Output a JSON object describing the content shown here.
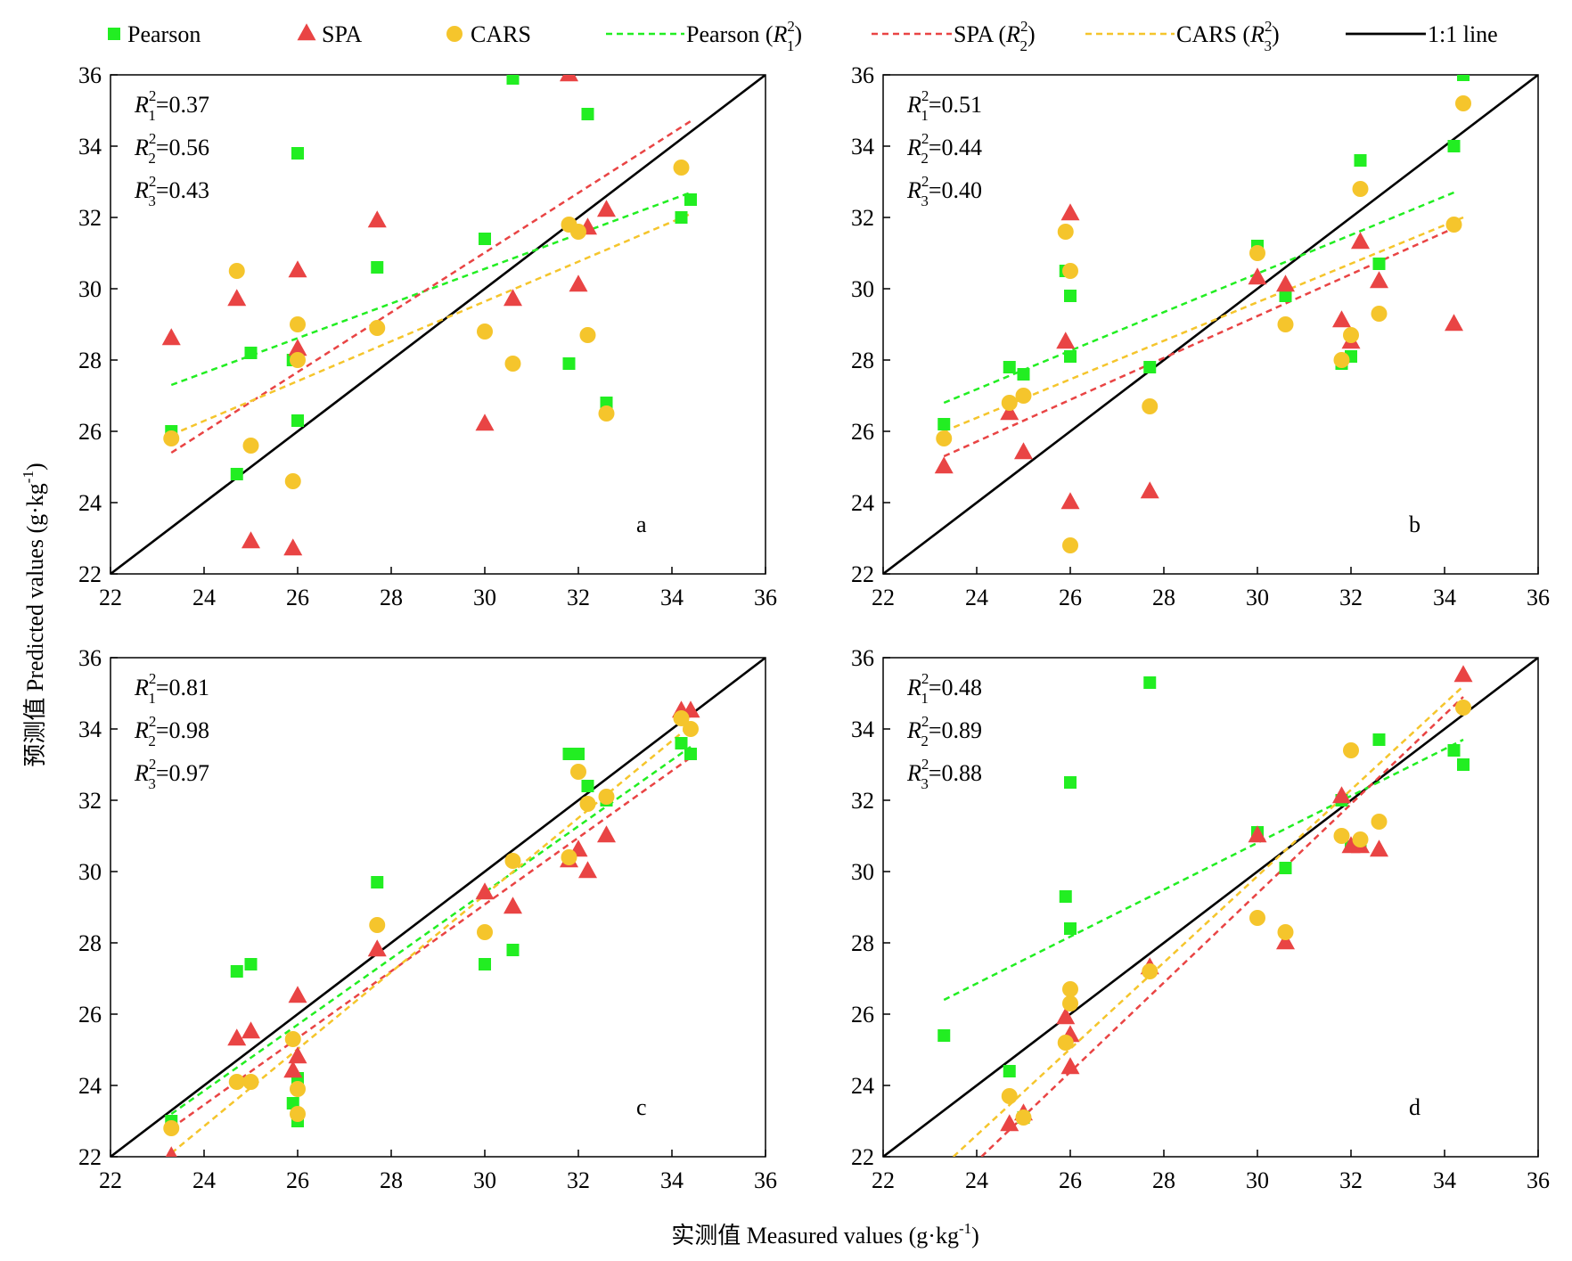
{
  "legend": {
    "items": [
      {
        "type": "marker",
        "marker": "square",
        "color": "#22ee22",
        "label": "Pearson"
      },
      {
        "type": "marker",
        "marker": "triangle",
        "color": "#e94444",
        "label": "SPA"
      },
      {
        "type": "marker",
        "marker": "circle",
        "color": "#f5c52c",
        "label": "CARS"
      },
      {
        "type": "line",
        "dash": true,
        "color": "#22ee22",
        "label": "Pearson (R",
        "sup": "2",
        "sub": "1",
        "suffix": ")"
      },
      {
        "type": "line",
        "dash": true,
        "color": "#e94444",
        "label": "SPA (R",
        "sup": "2",
        "sub": "2",
        "suffix": ")"
      },
      {
        "type": "line",
        "dash": true,
        "color": "#f5c52c",
        "label": "CARS (R",
        "sup": "2",
        "sub": "3",
        "suffix": ")"
      },
      {
        "type": "line",
        "dash": false,
        "color": "#000000",
        "label": "1:1 line"
      }
    ]
  },
  "axes": {
    "ylabel": "预测值 Predicted values (g·kg",
    "ylabel_sup": "-1",
    "ylabel_suffix": ")",
    "xlabel": "实测值 Measured values (g·kg",
    "xlabel_sup": "-1",
    "xlabel_suffix": ")"
  },
  "colors": {
    "pearson": "#22ee22",
    "spa": "#e94444",
    "cars": "#f5c52c",
    "identity": "#000000"
  },
  "chart_data": [
    {
      "type": "scatter",
      "panel_label": "a",
      "xlim": [
        22,
        36
      ],
      "ylim": [
        22,
        36
      ],
      "xticks": [
        22,
        24,
        26,
        28,
        30,
        32,
        34,
        36
      ],
      "yticks": [
        22,
        24,
        26,
        28,
        30,
        32,
        34,
        36
      ],
      "r2": [
        {
          "prefix": "R",
          "sup": "2",
          "sub": "1",
          "value": "=0.37"
        },
        {
          "prefix": "R",
          "sup": "2",
          "sub": "2",
          "value": "=0.56"
        },
        {
          "prefix": "R",
          "sup": "2",
          "sub": "3",
          "value": "=0.43"
        }
      ],
      "series": [
        {
          "name": "Pearson",
          "marker": "square",
          "color": "#22ee22",
          "x": [
            23.3,
            24.7,
            25.0,
            25.9,
            26.0,
            26.0,
            27.7,
            30.0,
            30.6,
            31.8,
            32.2,
            32.6,
            34.2,
            34.4
          ],
          "y": [
            26.0,
            24.8,
            28.2,
            28.0,
            33.8,
            26.3,
            30.6,
            31.4,
            35.9,
            27.9,
            34.9,
            26.8,
            32.0,
            32.5
          ]
        },
        {
          "name": "SPA",
          "marker": "triangle",
          "color": "#e94444",
          "x": [
            23.3,
            24.7,
            25.0,
            25.9,
            26.0,
            26.0,
            27.7,
            30.0,
            30.6,
            31.8,
            32.0,
            32.2,
            32.6
          ],
          "y": [
            28.6,
            29.7,
            22.9,
            22.7,
            30.5,
            28.3,
            31.9,
            26.2,
            29.7,
            36.0,
            30.1,
            31.7,
            32.2
          ]
        },
        {
          "name": "CARS",
          "marker": "circle",
          "color": "#f5c52c",
          "x": [
            23.3,
            24.7,
            25.0,
            25.9,
            26.0,
            26.0,
            27.7,
            30.0,
            30.6,
            31.8,
            32.0,
            32.2,
            32.6,
            34.2
          ],
          "y": [
            25.8,
            30.5,
            25.6,
            24.6,
            29.0,
            28.0,
            28.9,
            28.8,
            27.9,
            31.8,
            31.6,
            28.7,
            26.5,
            33.4
          ]
        }
      ],
      "fits": [
        {
          "name": "Pearson",
          "color": "#22ee22",
          "x": [
            23.3,
            34.4
          ],
          "y": [
            27.3,
            32.7
          ]
        },
        {
          "name": "SPA",
          "color": "#e94444",
          "x": [
            23.3,
            34.4
          ],
          "y": [
            25.4,
            34.7
          ]
        },
        {
          "name": "CARS",
          "color": "#f5c52c",
          "x": [
            23.3,
            34.4
          ],
          "y": [
            25.9,
            32.1
          ]
        }
      ],
      "identity": {
        "x": [
          22,
          36
        ],
        "y": [
          22,
          36
        ]
      }
    },
    {
      "type": "scatter",
      "panel_label": "b",
      "xlim": [
        22,
        36
      ],
      "ylim": [
        22,
        36
      ],
      "xticks": [
        22,
        24,
        26,
        28,
        30,
        32,
        34,
        36
      ],
      "yticks": [
        22,
        24,
        26,
        28,
        30,
        32,
        34,
        36
      ],
      "r2": [
        {
          "prefix": "R",
          "sup": "2",
          "sub": "1",
          "value": "=0.51"
        },
        {
          "prefix": "R",
          "sup": "2",
          "sub": "2",
          "value": "=0.44"
        },
        {
          "prefix": "R",
          "sup": "2",
          "sub": "3",
          "value": "=0.40"
        }
      ],
      "series": [
        {
          "name": "Pearson",
          "marker": "square",
          "color": "#22ee22",
          "x": [
            23.3,
            24.7,
            25.0,
            25.9,
            26.0,
            26.0,
            27.7,
            30.0,
            30.6,
            31.8,
            32.0,
            32.2,
            32.6,
            34.2,
            34.4
          ],
          "y": [
            26.2,
            27.8,
            27.6,
            30.5,
            29.8,
            28.1,
            27.8,
            31.2,
            29.8,
            27.9,
            28.1,
            33.6,
            30.7,
            34.0,
            36.0
          ]
        },
        {
          "name": "SPA",
          "marker": "triangle",
          "color": "#e94444",
          "x": [
            23.3,
            24.7,
            25.0,
            25.9,
            26.0,
            26.0,
            27.7,
            30.0,
            30.6,
            31.8,
            32.0,
            32.2,
            32.6,
            34.2
          ],
          "y": [
            25.0,
            26.5,
            25.4,
            28.5,
            32.1,
            24.0,
            24.3,
            30.3,
            30.1,
            29.1,
            28.5,
            31.3,
            30.2,
            29.0
          ]
        },
        {
          "name": "CARS",
          "marker": "circle",
          "color": "#f5c52c",
          "x": [
            23.3,
            24.7,
            25.0,
            25.9,
            26.0,
            26.0,
            27.7,
            30.0,
            30.6,
            31.8,
            32.0,
            32.2,
            32.6,
            34.2,
            34.4
          ],
          "y": [
            25.8,
            26.8,
            27.0,
            31.6,
            30.5,
            22.8,
            26.7,
            31.0,
            29.0,
            28.0,
            28.7,
            32.8,
            29.3,
            31.8,
            35.2
          ]
        }
      ],
      "fits": [
        {
          "name": "Pearson",
          "color": "#22ee22",
          "x": [
            23.3,
            34.2
          ],
          "y": [
            26.8,
            32.7
          ]
        },
        {
          "name": "SPA",
          "color": "#e94444",
          "x": [
            23.3,
            34.2
          ],
          "y": [
            25.3,
            31.7
          ]
        },
        {
          "name": "CARS",
          "color": "#f5c52c",
          "x": [
            23.3,
            34.4
          ],
          "y": [
            26.0,
            32.0
          ]
        }
      ],
      "identity": {
        "x": [
          22,
          36
        ],
        "y": [
          22,
          36
        ]
      }
    },
    {
      "type": "scatter",
      "panel_label": "c",
      "xlim": [
        22,
        36
      ],
      "ylim": [
        22,
        36
      ],
      "xticks": [
        22,
        24,
        26,
        28,
        30,
        32,
        34,
        36
      ],
      "yticks": [
        22,
        24,
        26,
        28,
        30,
        32,
        34,
        36
      ],
      "r2": [
        {
          "prefix": "R",
          "sup": "2",
          "sub": "1",
          "value": "=0.81"
        },
        {
          "prefix": "R",
          "sup": "2",
          "sub": "2",
          "value": "=0.98"
        },
        {
          "prefix": "R",
          "sup": "2",
          "sub": "3",
          "value": "=0.97"
        }
      ],
      "series": [
        {
          "name": "Pearson",
          "marker": "square",
          "color": "#22ee22",
          "x": [
            23.3,
            24.7,
            25.0,
            25.9,
            26.0,
            26.0,
            27.7,
            30.0,
            30.6,
            31.8,
            32.0,
            32.2,
            32.6,
            34.2,
            34.4
          ],
          "y": [
            23.0,
            27.2,
            27.4,
            23.5,
            24.2,
            23.0,
            29.7,
            27.4,
            27.8,
            33.3,
            33.3,
            32.4,
            32.0,
            33.6,
            33.3
          ]
        },
        {
          "name": "SPA",
          "marker": "triangle",
          "color": "#e94444",
          "x": [
            23.3,
            24.7,
            25.0,
            25.9,
            26.0,
            26.0,
            27.7,
            30.0,
            30.6,
            31.8,
            32.0,
            32.2,
            32.6,
            34.2,
            34.4
          ],
          "y": [
            22.0,
            25.3,
            25.5,
            24.4,
            26.5,
            24.8,
            27.8,
            29.4,
            29.0,
            30.3,
            30.6,
            30.0,
            31.0,
            34.5,
            34.5
          ]
        },
        {
          "name": "CARS",
          "marker": "circle",
          "color": "#f5c52c",
          "x": [
            23.3,
            24.7,
            25.0,
            25.9,
            26.0,
            26.0,
            27.7,
            30.0,
            30.6,
            31.8,
            32.0,
            32.2,
            32.6,
            34.2,
            34.4
          ],
          "y": [
            22.8,
            24.1,
            24.1,
            25.3,
            23.9,
            23.2,
            28.5,
            28.3,
            30.3,
            30.4,
            32.8,
            31.9,
            32.1,
            34.3,
            34.0
          ]
        }
      ],
      "fits": [
        {
          "name": "Pearson",
          "color": "#22ee22",
          "x": [
            23.3,
            34.4
          ],
          "y": [
            23.2,
            33.5
          ]
        },
        {
          "name": "SPA",
          "color": "#e94444",
          "x": [
            23.3,
            34.4
          ],
          "y": [
            22.8,
            33.2
          ]
        },
        {
          "name": "CARS",
          "color": "#f5c52c",
          "x": [
            23.3,
            34.4
          ],
          "y": [
            22.1,
            34.1
          ]
        }
      ],
      "identity": {
        "x": [
          22,
          36
        ],
        "y": [
          22,
          36
        ]
      }
    },
    {
      "type": "scatter",
      "panel_label": "d",
      "xlim": [
        22,
        36
      ],
      "ylim": [
        22,
        36
      ],
      "xticks": [
        22,
        24,
        26,
        28,
        30,
        32,
        34,
        36
      ],
      "yticks": [
        22,
        24,
        26,
        28,
        30,
        32,
        34,
        36
      ],
      "r2": [
        {
          "prefix": "R",
          "sup": "2",
          "sub": "1",
          "value": "=0.48"
        },
        {
          "prefix": "R",
          "sup": "2",
          "sub": "2",
          "value": "=0.89"
        },
        {
          "prefix": "R",
          "sup": "2",
          "sub": "3",
          "value": "=0.88"
        }
      ],
      "series": [
        {
          "name": "Pearson",
          "marker": "square",
          "color": "#22ee22",
          "x": [
            23.3,
            24.7,
            25.0,
            25.9,
            26.0,
            26.0,
            27.7,
            30.0,
            30.6,
            31.8,
            32.0,
            32.2,
            32.6,
            34.2,
            34.4
          ],
          "y": [
            25.4,
            24.4,
            23.1,
            29.3,
            32.5,
            28.4,
            35.3,
            31.1,
            30.1,
            32.0,
            30.7,
            30.7,
            33.7,
            33.4,
            33.0
          ]
        },
        {
          "name": "SPA",
          "marker": "triangle",
          "color": "#e94444",
          "x": [
            24.7,
            25.0,
            25.9,
            26.0,
            26.0,
            27.7,
            30.0,
            30.6,
            31.8,
            32.0,
            32.2,
            32.6,
            34.4
          ],
          "y": [
            22.9,
            23.2,
            25.9,
            25.4,
            24.5,
            27.3,
            31.0,
            28.0,
            32.1,
            30.7,
            30.7,
            30.6,
            35.5
          ]
        },
        {
          "name": "CARS",
          "marker": "circle",
          "color": "#f5c52c",
          "x": [
            24.7,
            25.0,
            25.9,
            26.0,
            26.0,
            27.7,
            30.0,
            30.6,
            31.8,
            32.0,
            32.2,
            32.6,
            34.4
          ],
          "y": [
            23.7,
            23.1,
            25.2,
            26.7,
            26.3,
            27.2,
            28.7,
            28.3,
            31.0,
            33.4,
            30.9,
            31.4,
            34.6
          ]
        }
      ],
      "fits": [
        {
          "name": "Pearson",
          "color": "#22ee22",
          "x": [
            23.3,
            34.4
          ],
          "y": [
            26.4,
            33.7
          ]
        },
        {
          "name": "SPA",
          "color": "#e94444",
          "x": [
            24.1,
            34.4
          ],
          "y": [
            22.0,
            34.9
          ]
        },
        {
          "name": "CARS",
          "color": "#f5c52c",
          "x": [
            23.5,
            34.4
          ],
          "y": [
            22.0,
            35.2
          ]
        }
      ],
      "identity": {
        "x": [
          22,
          36
        ],
        "y": [
          22,
          36
        ]
      }
    }
  ]
}
